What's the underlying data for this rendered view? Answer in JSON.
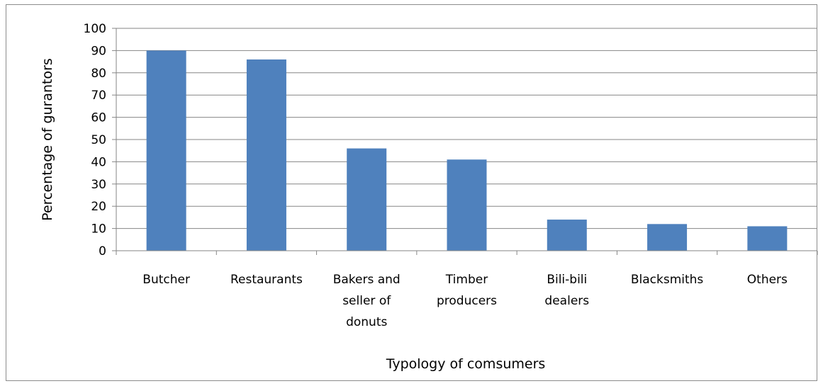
{
  "chart_data": {
    "type": "bar",
    "title": "",
    "xlabel": "Typology of comsumers",
    "ylabel": "Percentage of gurantors",
    "ylim": [
      0,
      100
    ],
    "yticks": [
      0,
      10,
      20,
      30,
      40,
      50,
      60,
      70,
      80,
      90,
      100
    ],
    "grid": true,
    "legend": "none",
    "bar_color": "#4f81bd",
    "categories": [
      [
        "Butcher"
      ],
      [
        "Restaurants"
      ],
      [
        "Bakers and",
        "seller of",
        "donuts"
      ],
      [
        "Timber",
        "producers"
      ],
      [
        "Bili-bili",
        "dealers"
      ],
      [
        "Blacksmiths"
      ],
      [
        "Others"
      ]
    ],
    "values": [
      90,
      86,
      46,
      41,
      14,
      12,
      11
    ]
  }
}
